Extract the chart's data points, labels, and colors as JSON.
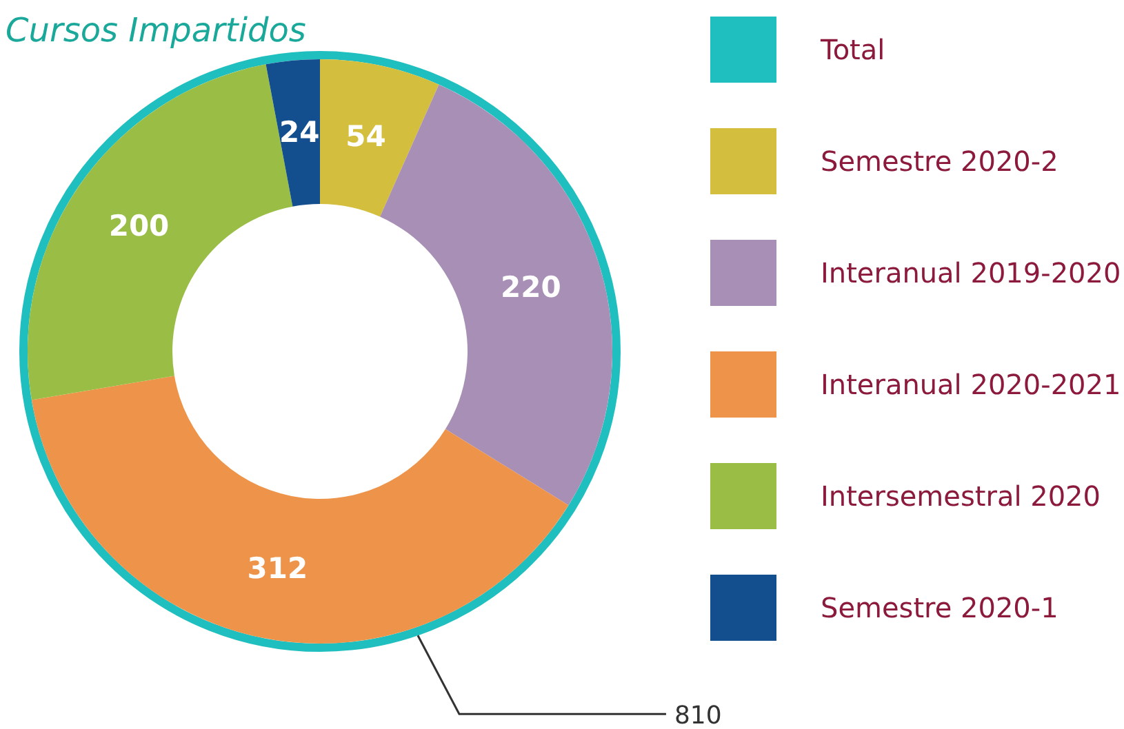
{
  "chart_data": {
    "type": "donut",
    "title": "Cursos Impartidos",
    "categories": [
      "Semestre 2020-2",
      "Interanual 2019-2020",
      "Interanual 2020-2021",
      "Intersemestral 2020",
      "Semestre 2020-1"
    ],
    "values": [
      54,
      220,
      312,
      200,
      24
    ],
    "colors": [
      "#d4be3d",
      "#a88fb5",
      "#ee944a",
      "#9abd45",
      "#134f8e"
    ],
    "annotations": [
      "Total",
      "810"
    ],
    "data_labels": true,
    "legend": "right"
  }
}
